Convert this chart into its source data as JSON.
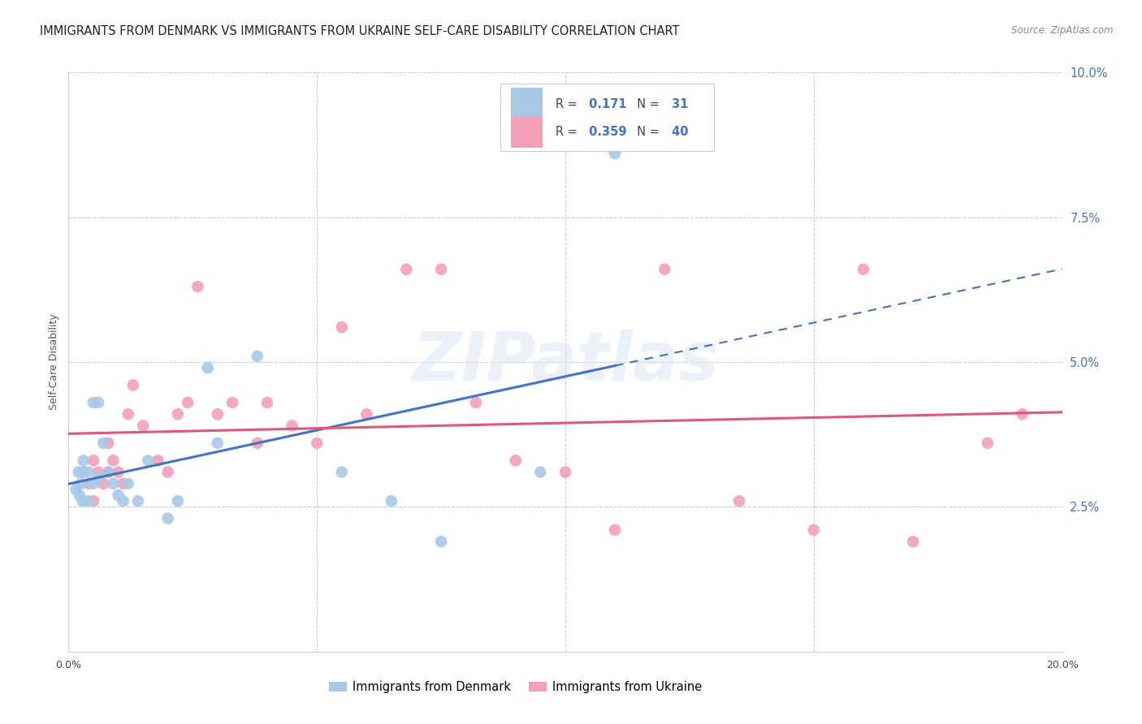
{
  "title": "IMMIGRANTS FROM DENMARK VS IMMIGRANTS FROM UKRAINE SELF-CARE DISABILITY CORRELATION CHART",
  "source": "Source: ZipAtlas.com",
  "ylabel": "Self-Care Disability",
  "xlim": [
    0.0,
    0.2
  ],
  "ylim": [
    0.0,
    0.1
  ],
  "yticks_right": [
    0.025,
    0.05,
    0.075,
    0.1
  ],
  "ytick_labels_right": [
    "2.5%",
    "5.0%",
    "7.5%",
    "10.0%"
  ],
  "denmark_color": "#a8c8e8",
  "ukraine_color": "#f4a0b8",
  "denmark_line_color": "#4472c4",
  "ukraine_line_color": "#e05878",
  "denmark_R": 0.171,
  "denmark_N": 31,
  "ukraine_R": 0.359,
  "ukraine_N": 40,
  "denmark_x": [
    0.0015,
    0.002,
    0.0022,
    0.0025,
    0.0028,
    0.003,
    0.003,
    0.004,
    0.004,
    0.005,
    0.005,
    0.006,
    0.006,
    0.007,
    0.008,
    0.009,
    0.01,
    0.011,
    0.012,
    0.014,
    0.016,
    0.02,
    0.022,
    0.028,
    0.03,
    0.038,
    0.055,
    0.065,
    0.075,
    0.095,
    0.11
  ],
  "denmark_y": [
    0.028,
    0.031,
    0.027,
    0.029,
    0.026,
    0.031,
    0.033,
    0.026,
    0.031,
    0.029,
    0.043,
    0.03,
    0.043,
    0.036,
    0.031,
    0.029,
    0.027,
    0.026,
    0.029,
    0.026,
    0.033,
    0.023,
    0.026,
    0.049,
    0.036,
    0.051,
    0.031,
    0.026,
    0.019,
    0.031,
    0.086
  ],
  "ukraine_x": [
    0.003,
    0.004,
    0.005,
    0.005,
    0.006,
    0.007,
    0.008,
    0.008,
    0.009,
    0.01,
    0.011,
    0.012,
    0.013,
    0.015,
    0.018,
    0.02,
    0.022,
    0.024,
    0.026,
    0.03,
    0.033,
    0.038,
    0.04,
    0.045,
    0.05,
    0.055,
    0.06,
    0.068,
    0.075,
    0.082,
    0.09,
    0.1,
    0.11,
    0.12,
    0.135,
    0.15,
    0.16,
    0.17,
    0.185,
    0.192
  ],
  "ukraine_y": [
    0.031,
    0.029,
    0.026,
    0.033,
    0.031,
    0.029,
    0.036,
    0.031,
    0.033,
    0.031,
    0.029,
    0.041,
    0.046,
    0.039,
    0.033,
    0.031,
    0.041,
    0.043,
    0.063,
    0.041,
    0.043,
    0.036,
    0.043,
    0.039,
    0.036,
    0.056,
    0.041,
    0.066,
    0.066,
    0.043,
    0.033,
    0.031,
    0.021,
    0.066,
    0.026,
    0.021,
    0.066,
    0.019,
    0.036,
    0.041
  ],
  "background_color": "#ffffff",
  "grid_color": "#cccccc",
  "watermark_text": "ZIPatlas",
  "title_fontsize": 10.5,
  "source_fontsize": 8.5,
  "axis_label_fontsize": 9,
  "tick_fontsize": 9,
  "legend_R_color": "#333333",
  "legend_N_color": "#4472c4"
}
